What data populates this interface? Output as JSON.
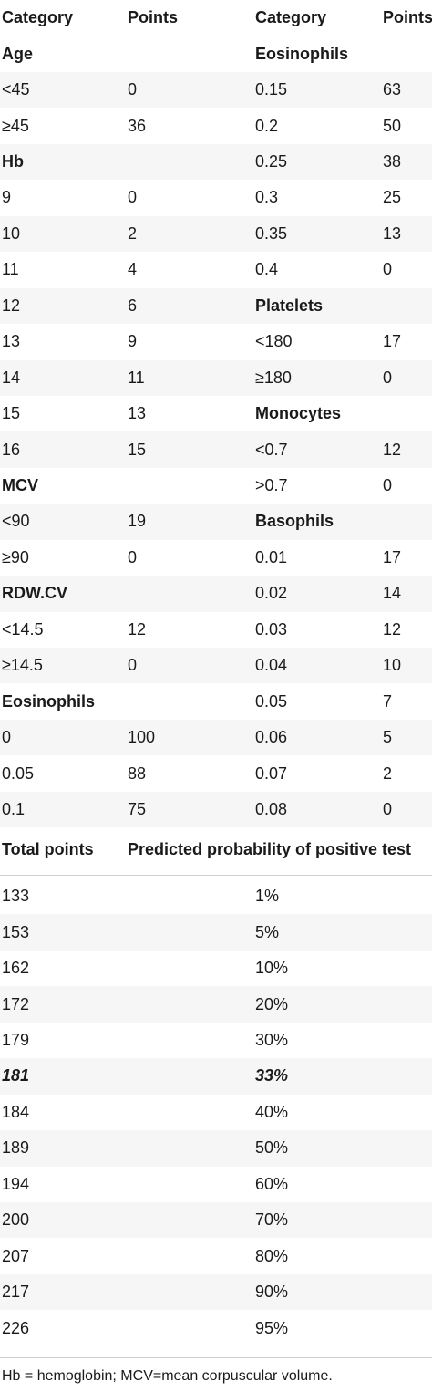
{
  "table1": {
    "headers": [
      "Category",
      "Points",
      "Category",
      "Points"
    ],
    "rows": [
      [
        {
          "t": "Age",
          "b": true
        },
        {
          "t": ""
        },
        {
          "t": "Eosinophils",
          "b": true
        },
        {
          "t": ""
        }
      ],
      [
        {
          "t": "<45"
        },
        {
          "t": "0"
        },
        {
          "t": "0.15"
        },
        {
          "t": "63"
        }
      ],
      [
        {
          "t": "≥45"
        },
        {
          "t": "36"
        },
        {
          "t": "0.2"
        },
        {
          "t": "50"
        }
      ],
      [
        {
          "t": "Hb",
          "b": true
        },
        {
          "t": ""
        },
        {
          "t": "0.25"
        },
        {
          "t": "38"
        }
      ],
      [
        {
          "t": "9"
        },
        {
          "t": "0"
        },
        {
          "t": "0.3"
        },
        {
          "t": "25"
        }
      ],
      [
        {
          "t": "10"
        },
        {
          "t": "2"
        },
        {
          "t": "0.35"
        },
        {
          "t": "13"
        }
      ],
      [
        {
          "t": "11"
        },
        {
          "t": "4"
        },
        {
          "t": "0.4"
        },
        {
          "t": "0"
        }
      ],
      [
        {
          "t": "12"
        },
        {
          "t": "6"
        },
        {
          "t": "Platelets",
          "b": true
        },
        {
          "t": ""
        }
      ],
      [
        {
          "t": "13"
        },
        {
          "t": "9"
        },
        {
          "t": "<180"
        },
        {
          "t": "17"
        }
      ],
      [
        {
          "t": "14"
        },
        {
          "t": "11"
        },
        {
          "t": "≥180"
        },
        {
          "t": "0"
        }
      ],
      [
        {
          "t": "15"
        },
        {
          "t": "13"
        },
        {
          "t": "Monocytes",
          "b": true
        },
        {
          "t": ""
        }
      ],
      [
        {
          "t": "16"
        },
        {
          "t": "15"
        },
        {
          "t": "<0.7"
        },
        {
          "t": "12"
        }
      ],
      [
        {
          "t": "MCV",
          "b": true
        },
        {
          "t": ""
        },
        {
          "t": ">0.7"
        },
        {
          "t": "0"
        }
      ],
      [
        {
          "t": "<90"
        },
        {
          "t": "19"
        },
        {
          "t": "Basophils",
          "b": true
        },
        {
          "t": ""
        }
      ],
      [
        {
          "t": "≥90"
        },
        {
          "t": "0"
        },
        {
          "t": "0.01"
        },
        {
          "t": "17"
        }
      ],
      [
        {
          "t": "RDW.CV",
          "b": true
        },
        {
          "t": ""
        },
        {
          "t": "0.02"
        },
        {
          "t": "14"
        }
      ],
      [
        {
          "t": "<14.5"
        },
        {
          "t": "12"
        },
        {
          "t": "0.03"
        },
        {
          "t": "12"
        }
      ],
      [
        {
          "t": "≥14.5"
        },
        {
          "t": "0"
        },
        {
          "t": "0.04"
        },
        {
          "t": "10"
        }
      ],
      [
        {
          "t": "Eosinophils",
          "b": true
        },
        {
          "t": ""
        },
        {
          "t": "0.05"
        },
        {
          "t": "7"
        }
      ],
      [
        {
          "t": "0"
        },
        {
          "t": "100"
        },
        {
          "t": "0.06"
        },
        {
          "t": "5"
        }
      ],
      [
        {
          "t": "0.05"
        },
        {
          "t": "88"
        },
        {
          "t": "0.07"
        },
        {
          "t": "2"
        }
      ],
      [
        {
          "t": "0.1"
        },
        {
          "t": "75"
        },
        {
          "t": "0.08"
        },
        {
          "t": "0"
        }
      ]
    ]
  },
  "table2": {
    "headers": [
      "Total points",
      "Predicted probability of positive test"
    ],
    "rows": [
      {
        "points": "133",
        "prob": "1%"
      },
      {
        "points": "153",
        "prob": "5%"
      },
      {
        "points": "162",
        "prob": "10%"
      },
      {
        "points": "172",
        "prob": "20%"
      },
      {
        "points": "179",
        "prob": "30%"
      },
      {
        "points": "181",
        "prob": "33%",
        "highlight": true
      },
      {
        "points": "184",
        "prob": "40%"
      },
      {
        "points": "189",
        "prob": "50%"
      },
      {
        "points": "194",
        "prob": "60%"
      },
      {
        "points": "200",
        "prob": "70%"
      },
      {
        "points": "207",
        "prob": "80%"
      },
      {
        "points": "217",
        "prob": "90%"
      },
      {
        "points": "226",
        "prob": "95%"
      }
    ]
  },
  "footnote": "Hb = hemoglobin; MCV=mean corpuscular volume."
}
